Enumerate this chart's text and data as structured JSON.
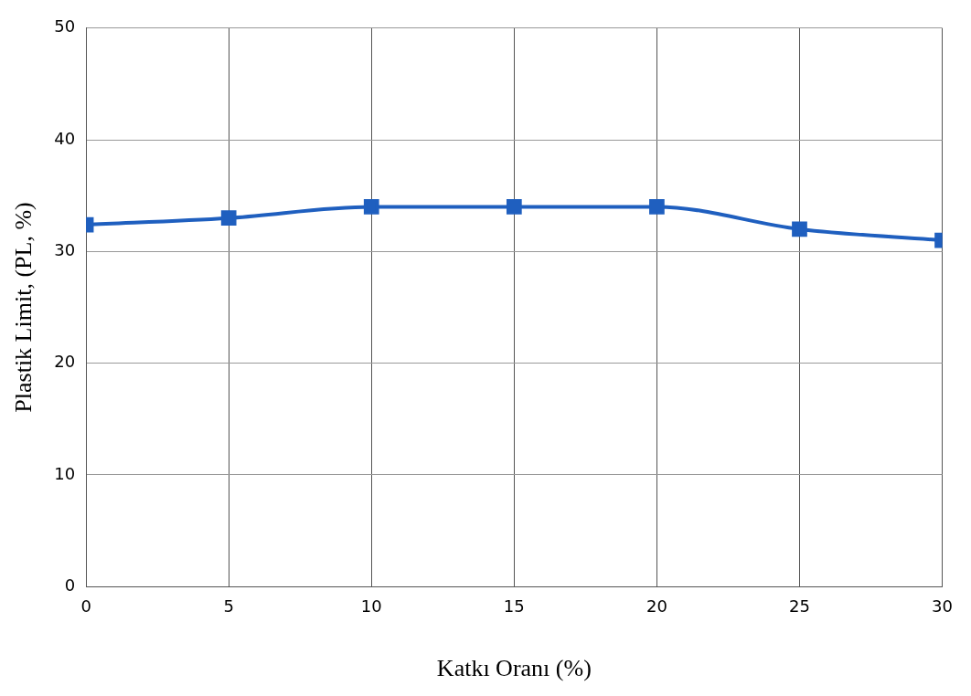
{
  "chart_data": {
    "type": "line",
    "xlabel": "Katkı Oranı (%)",
    "ylabel": "Plastik Limit, (PL, %)",
    "x": [
      0,
      5,
      10,
      15,
      20,
      25,
      30
    ],
    "series": [
      {
        "color": "#1f5fbf",
        "values": [
          32.4,
          33,
          34,
          34,
          34,
          32,
          31
        ]
      }
    ],
    "xlim": [
      0,
      30
    ],
    "xticks": [
      0,
      5,
      10,
      15,
      20,
      25,
      30
    ],
    "ylim": [
      0,
      50
    ],
    "yticks": [
      0,
      10,
      20,
      30,
      40,
      50
    ],
    "grid": true,
    "legend": false,
    "marker": "square",
    "line_style": "solid"
  }
}
